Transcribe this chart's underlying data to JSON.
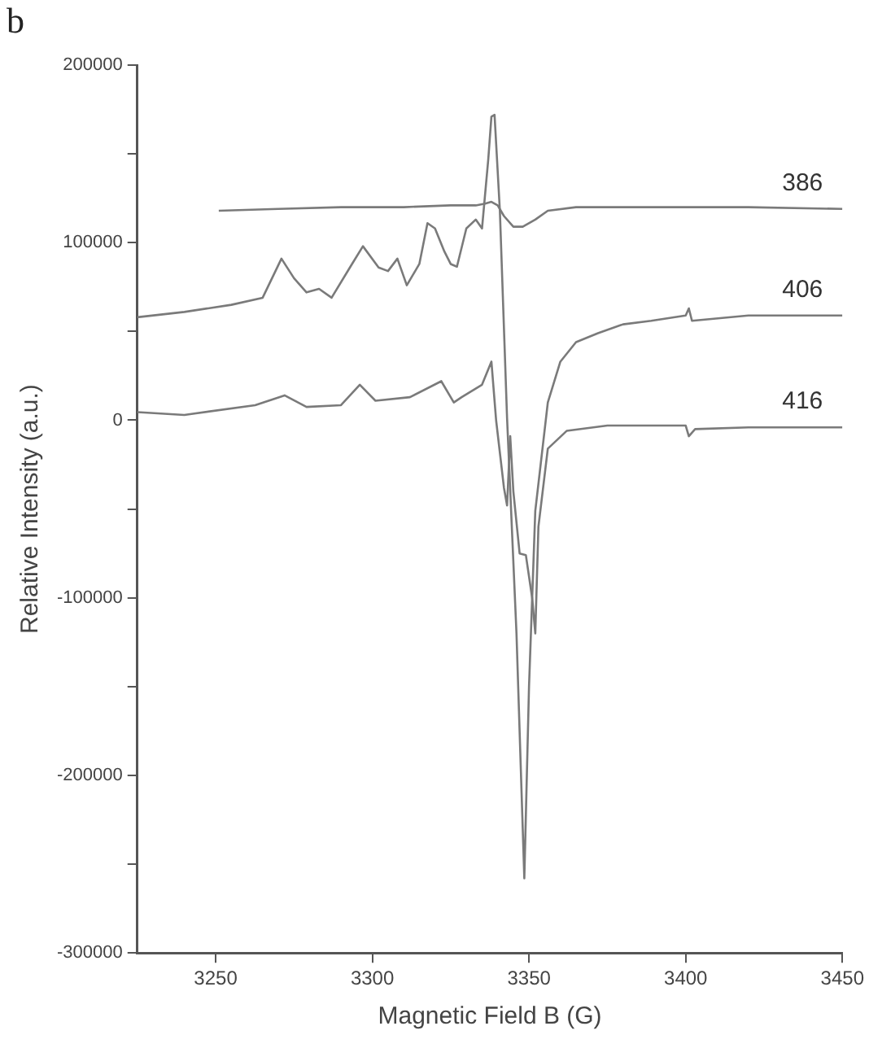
{
  "chart_data": {
    "type": "line",
    "title": "b",
    "xlabel": "Magnetic Field B (G)",
    "ylabel": "Relative Intensity (a.u.)",
    "xlim": [
      3225,
      3450
    ],
    "ylim": [
      -300000,
      200000
    ],
    "xticks": [
      3250,
      3300,
      3350,
      3400,
      3450
    ],
    "yticks": [
      -300000,
      {
        "value": -250000,
        "label": null
      },
      -200000,
      {
        "value": -150000,
        "label": null
      },
      -100000,
      {
        "value": -50000,
        "label": null
      },
      0,
      {
        "value": 50000,
        "label": null
      },
      100000,
      {
        "value": 150000,
        "label": null
      },
      200000
    ],
    "grid": false,
    "legend": false,
    "marker": "none",
    "line_style": "solid",
    "series": [
      {
        "name": "386",
        "color": "#7a7a7a",
        "x": [
          3251,
          3270,
          3290,
          3310,
          3325,
          3333,
          3336,
          3338,
          3340,
          3342,
          3345,
          3348,
          3352,
          3356,
          3365,
          3380,
          3400,
          3420,
          3450
        ],
        "values": [
          118000,
          119000,
          120000,
          120000,
          121000,
          121000,
          122000,
          123000,
          121000,
          115000,
          109000,
          109000,
          113000,
          118000,
          120000,
          120000,
          120000,
          120000,
          119000
        ]
      },
      {
        "name": "406",
        "color": "#7a7a7a",
        "x": [
          3225,
          3240,
          3255,
          3265,
          3271,
          3275,
          3279,
          3283,
          3287,
          3293,
          3297,
          3302,
          3305,
          3308,
          3311,
          3315,
          3317.6,
          3320,
          3323,
          3325,
          3327,
          3330,
          3333,
          3335,
          3337,
          3338,
          3339,
          3340.7,
          3343,
          3346,
          3348.5,
          3350,
          3352,
          3356,
          3360,
          3365,
          3372,
          3380,
          3389,
          3400,
          3401,
          3402,
          3420,
          3450
        ],
        "values": [
          58000,
          61000,
          65000,
          69000,
          91000,
          80000,
          72000,
          74000,
          69000,
          86500,
          98000,
          86000,
          84000,
          91000,
          76000,
          88000,
          111000,
          108000,
          95000,
          88000,
          86500,
          108000,
          113000,
          108000,
          147000,
          171000,
          172000,
          118000,
          1000,
          -120000,
          -258000,
          -150000,
          -51000,
          10000,
          33000,
          44000,
          49000,
          54000,
          56000,
          59000,
          63000,
          56000,
          59000,
          59000
        ]
      },
      {
        "name": "416",
        "color": "#7a7a7a",
        "x": [
          3225,
          3240,
          3262.6,
          3272,
          3279,
          3290,
          3296,
          3301,
          3312,
          3322,
          3326,
          3328.5,
          3335,
          3338,
          3339.5,
          3342,
          3343,
          3344,
          3345,
          3347,
          3349,
          3351,
          3352,
          3353,
          3356,
          3362,
          3375,
          3400,
          3401,
          3403,
          3420,
          3450
        ],
        "values": [
          4600,
          3000,
          8500,
          14000,
          7500,
          8500,
          20000,
          11000,
          13000,
          22000,
          10000,
          13000,
          20000,
          33000,
          0,
          -38000,
          -48000,
          -9000,
          -40000,
          -75000,
          -76000,
          -100000,
          -120000,
          -60000,
          -16000,
          -6000,
          -3000,
          -3000,
          -9000,
          -5000,
          -4000,
          -4000
        ]
      }
    ]
  }
}
